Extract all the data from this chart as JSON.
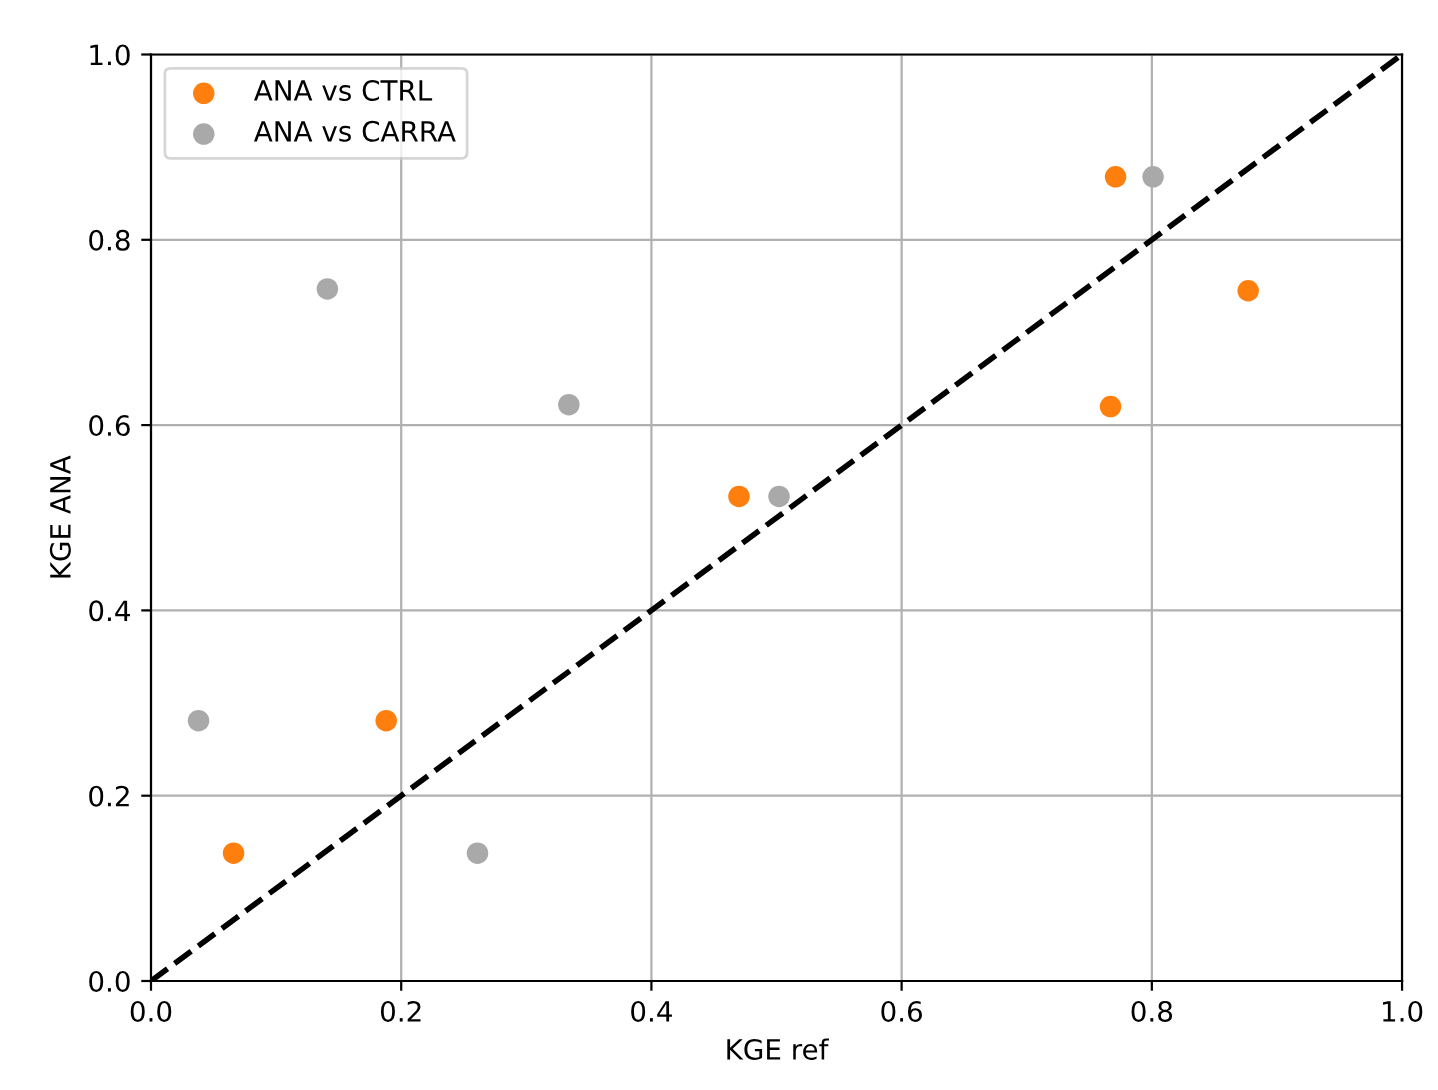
{
  "chart_data": {
    "type": "scatter",
    "xlabel": "KGE ref",
    "ylabel": "KGE ANA",
    "xlim": [
      0.0,
      1.0
    ],
    "ylim": [
      0.0,
      1.0
    ],
    "xticks": [
      {
        "value": 0,
        "label": "0.0"
      },
      {
        "value": 0.2,
        "label": "0.2"
      },
      {
        "value": 0.4,
        "label": "0.4"
      },
      {
        "value": 0.6,
        "label": "0.6"
      },
      {
        "value": 0.8,
        "label": "0.8"
      },
      {
        "value": 1,
        "label": "1.0"
      }
    ],
    "yticks": [
      {
        "value": 0,
        "label": "0.0"
      },
      {
        "value": 0.2,
        "label": "0.2"
      },
      {
        "value": 0.4,
        "label": "0.4"
      },
      {
        "value": 0.6,
        "label": "0.6"
      },
      {
        "value": 0.8,
        "label": "0.8"
      },
      {
        "value": 1,
        "label": "1.0"
      }
    ],
    "grid": true,
    "legend": "top left",
    "series": [
      {
        "name": "ANA vs CTRL",
        "marker": "circle",
        "color": "#ff7f0e",
        "x": [
          0.066,
          0.188,
          0.47,
          0.767,
          0.771,
          0.877
        ],
        "values": [
          0.138,
          0.281,
          0.523,
          0.62,
          0.868,
          0.745
        ]
      },
      {
        "name": "ANA vs CARRA",
        "marker": "circle",
        "color": "#a9a9a9",
        "x": [
          0.038,
          0.141,
          0.261,
          0.334,
          0.502,
          0.801
        ],
        "values": [
          0.281,
          0.747,
          0.138,
          0.622,
          0.523,
          0.868
        ]
      },
      {
        "type": "line",
        "marker": "none",
        "color": "#000000",
        "line_style": "dashed",
        "x": [
          0,
          1
        ],
        "values": [
          0,
          1
        ]
      }
    ]
  }
}
